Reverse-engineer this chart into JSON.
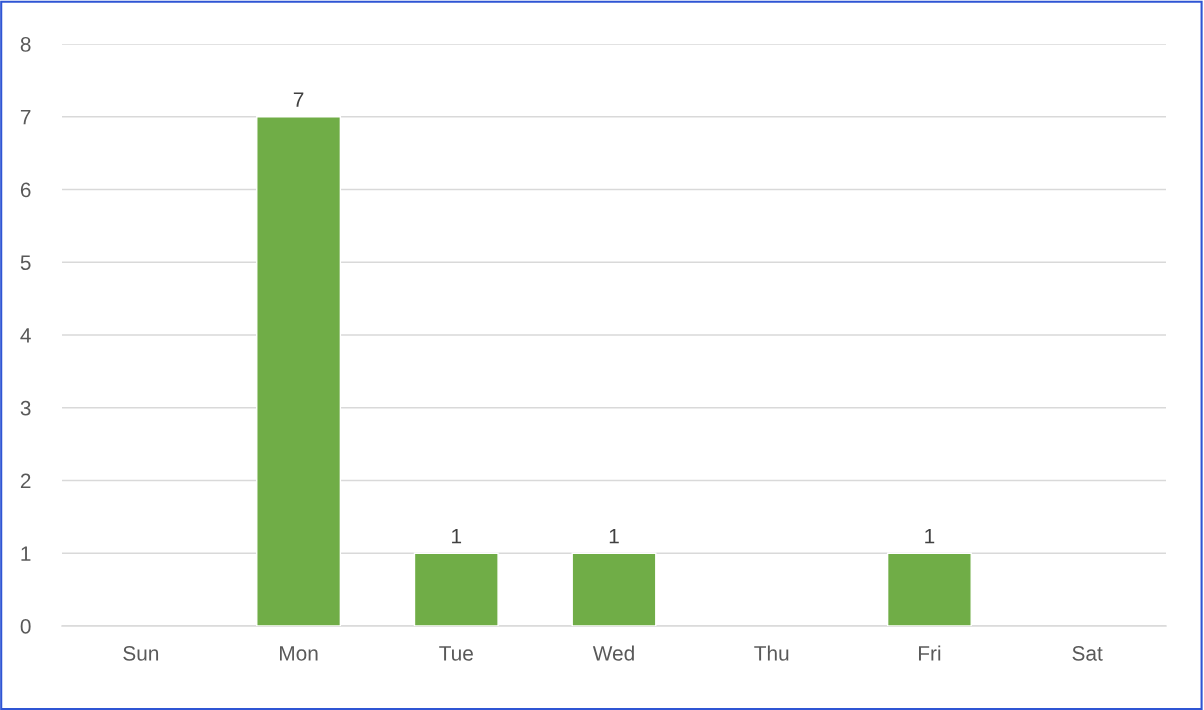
{
  "chart_data": {
    "type": "bar",
    "categories": [
      "Sun",
      "Mon",
      "Tue",
      "Wed",
      "Thu",
      "Fri",
      "Sat"
    ],
    "values": [
      null,
      7,
      1,
      1,
      null,
      1,
      null
    ],
    "color": "#70ad47",
    "ylim": [
      0,
      8
    ],
    "yticks": [
      0,
      1,
      2,
      3,
      4,
      5,
      6,
      7,
      8
    ],
    "grid": "y",
    "data_labels": true
  }
}
